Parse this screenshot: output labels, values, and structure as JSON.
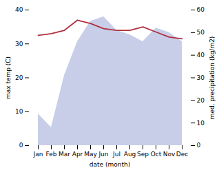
{
  "chart_data": {
    "type": "line",
    "categories": [
      "Jan",
      "Feb",
      "Mar",
      "Apr",
      "May",
      "Jun",
      "Jul",
      "Aug",
      "Sep",
      "Oct",
      "Nov",
      "Dec"
    ],
    "xlabel": "date (month)",
    "ylabel": "max temp (C)",
    "y2label": "med. precipitation (kg/m2)",
    "series": [
      {
        "type": "area",
        "axis": "y2",
        "color": "#c8cee8",
        "values": [
          14,
          8,
          31,
          46,
          55,
          57,
          51,
          49,
          46,
          52,
          50,
          46
        ]
      },
      {
        "type": "line",
        "axis": "y",
        "color": "#b03040",
        "values": [
          32.5,
          33.0,
          34.0,
          37.0,
          36.0,
          34.5,
          34.0,
          34.0,
          35.0,
          33.5,
          32.0,
          31.5
        ]
      }
    ],
    "ylim": [
      0,
      40
    ],
    "yticks": [
      0,
      10,
      20,
      30,
      40
    ],
    "y2lim": [
      0,
      60
    ],
    "y2ticks": [
      0,
      10,
      20,
      30,
      40,
      50,
      60
    ]
  }
}
